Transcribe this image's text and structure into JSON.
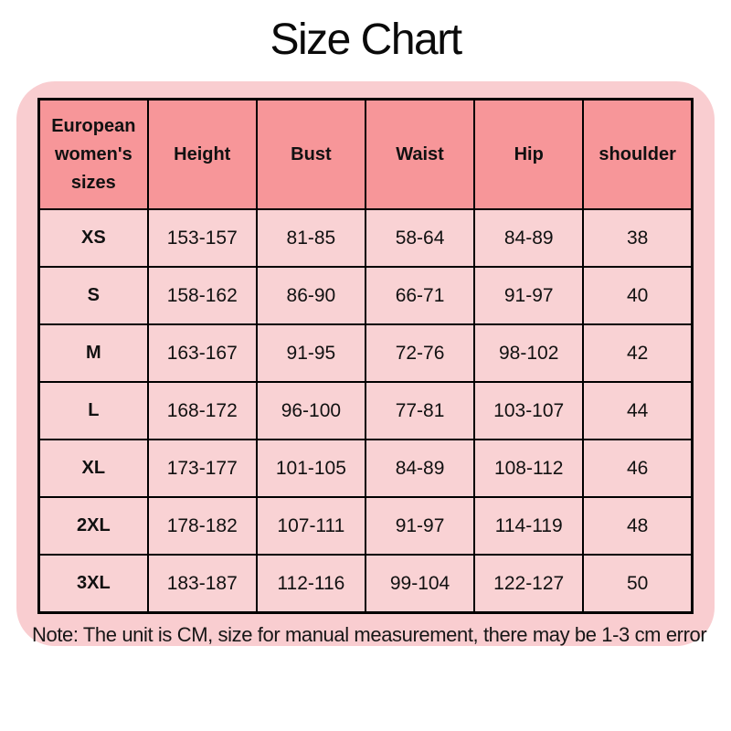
{
  "page": {
    "title": "Size Chart",
    "note": "Note: The unit is CM, size for manual measurement, there may be 1-3 cm error"
  },
  "colors": {
    "page_background": "#ffffff",
    "panel_background": "#f9cdd0",
    "header_cell_background": "#f79699",
    "data_cell_background": "#f9d2d4",
    "table_border": "#000000",
    "text": "#111111"
  },
  "chart_data": {
    "type": "table",
    "title": "Size Chart",
    "columns": [
      "European women's sizes",
      "Height",
      "Bust",
      "Waist",
      "Hip",
      "shoulder"
    ],
    "rows": [
      [
        "XS",
        "153-157",
        "81-85",
        "58-64",
        "84-89",
        "38"
      ],
      [
        "S",
        "158-162",
        "86-90",
        "66-71",
        "91-97",
        "40"
      ],
      [
        "M",
        "163-167",
        "91-95",
        "72-76",
        "98-102",
        "42"
      ],
      [
        "L",
        "168-172",
        "96-100",
        "77-81",
        "103-107",
        "44"
      ],
      [
        "XL",
        "173-177",
        "101-105",
        "84-89",
        "108-112",
        "46"
      ],
      [
        "2XL",
        "178-182",
        "107-111",
        "91-97",
        "114-119",
        "48"
      ],
      [
        "3XL",
        "183-187",
        "112-116",
        "99-104",
        "122-127",
        "50"
      ]
    ],
    "note": "Note: The unit is CM, size for manual measurement, there may be 1-3 cm error",
    "layout": {
      "grid": true,
      "header_row": true,
      "unit": "cm"
    }
  }
}
